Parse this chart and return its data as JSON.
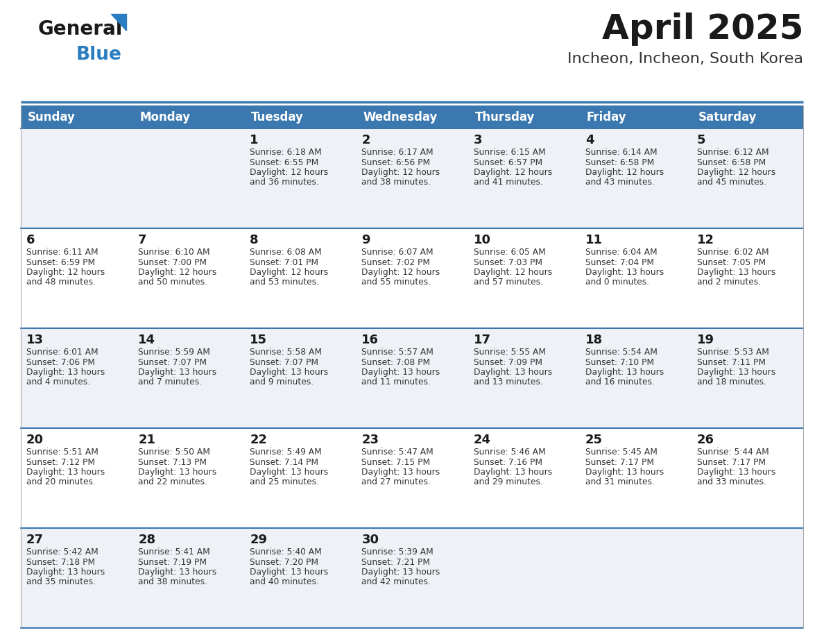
{
  "title": "April 2025",
  "subtitle": "Incheon, Incheon, South Korea",
  "days_of_week": [
    "Sunday",
    "Monday",
    "Tuesday",
    "Wednesday",
    "Thursday",
    "Friday",
    "Saturday"
  ],
  "header_bg": "#3b78b0",
  "header_text_color": "#ffffff",
  "cell_bg_odd": "#eef2f7",
  "cell_bg_even": "#ffffff",
  "divider_color": "#3b78b0",
  "title_color": "#1a1a1a",
  "subtitle_color": "#333333",
  "day_num_color": "#1a1a1a",
  "info_color": "#333333",
  "calendar": [
    [
      {
        "day": "",
        "info": ""
      },
      {
        "day": "",
        "info": ""
      },
      {
        "day": "1",
        "info": "Sunrise: 6:18 AM\nSunset: 6:55 PM\nDaylight: 12 hours\nand 36 minutes."
      },
      {
        "day": "2",
        "info": "Sunrise: 6:17 AM\nSunset: 6:56 PM\nDaylight: 12 hours\nand 38 minutes."
      },
      {
        "day": "3",
        "info": "Sunrise: 6:15 AM\nSunset: 6:57 PM\nDaylight: 12 hours\nand 41 minutes."
      },
      {
        "day": "4",
        "info": "Sunrise: 6:14 AM\nSunset: 6:58 PM\nDaylight: 12 hours\nand 43 minutes."
      },
      {
        "day": "5",
        "info": "Sunrise: 6:12 AM\nSunset: 6:58 PM\nDaylight: 12 hours\nand 45 minutes."
      }
    ],
    [
      {
        "day": "6",
        "info": "Sunrise: 6:11 AM\nSunset: 6:59 PM\nDaylight: 12 hours\nand 48 minutes."
      },
      {
        "day": "7",
        "info": "Sunrise: 6:10 AM\nSunset: 7:00 PM\nDaylight: 12 hours\nand 50 minutes."
      },
      {
        "day": "8",
        "info": "Sunrise: 6:08 AM\nSunset: 7:01 PM\nDaylight: 12 hours\nand 53 minutes."
      },
      {
        "day": "9",
        "info": "Sunrise: 6:07 AM\nSunset: 7:02 PM\nDaylight: 12 hours\nand 55 minutes."
      },
      {
        "day": "10",
        "info": "Sunrise: 6:05 AM\nSunset: 7:03 PM\nDaylight: 12 hours\nand 57 minutes."
      },
      {
        "day": "11",
        "info": "Sunrise: 6:04 AM\nSunset: 7:04 PM\nDaylight: 13 hours\nand 0 minutes."
      },
      {
        "day": "12",
        "info": "Sunrise: 6:02 AM\nSunset: 7:05 PM\nDaylight: 13 hours\nand 2 minutes."
      }
    ],
    [
      {
        "day": "13",
        "info": "Sunrise: 6:01 AM\nSunset: 7:06 PM\nDaylight: 13 hours\nand 4 minutes."
      },
      {
        "day": "14",
        "info": "Sunrise: 5:59 AM\nSunset: 7:07 PM\nDaylight: 13 hours\nand 7 minutes."
      },
      {
        "day": "15",
        "info": "Sunrise: 5:58 AM\nSunset: 7:07 PM\nDaylight: 13 hours\nand 9 minutes."
      },
      {
        "day": "16",
        "info": "Sunrise: 5:57 AM\nSunset: 7:08 PM\nDaylight: 13 hours\nand 11 minutes."
      },
      {
        "day": "17",
        "info": "Sunrise: 5:55 AM\nSunset: 7:09 PM\nDaylight: 13 hours\nand 13 minutes."
      },
      {
        "day": "18",
        "info": "Sunrise: 5:54 AM\nSunset: 7:10 PM\nDaylight: 13 hours\nand 16 minutes."
      },
      {
        "day": "19",
        "info": "Sunrise: 5:53 AM\nSunset: 7:11 PM\nDaylight: 13 hours\nand 18 minutes."
      }
    ],
    [
      {
        "day": "20",
        "info": "Sunrise: 5:51 AM\nSunset: 7:12 PM\nDaylight: 13 hours\nand 20 minutes."
      },
      {
        "day": "21",
        "info": "Sunrise: 5:50 AM\nSunset: 7:13 PM\nDaylight: 13 hours\nand 22 minutes."
      },
      {
        "day": "22",
        "info": "Sunrise: 5:49 AM\nSunset: 7:14 PM\nDaylight: 13 hours\nand 25 minutes."
      },
      {
        "day": "23",
        "info": "Sunrise: 5:47 AM\nSunset: 7:15 PM\nDaylight: 13 hours\nand 27 minutes."
      },
      {
        "day": "24",
        "info": "Sunrise: 5:46 AM\nSunset: 7:16 PM\nDaylight: 13 hours\nand 29 minutes."
      },
      {
        "day": "25",
        "info": "Sunrise: 5:45 AM\nSunset: 7:17 PM\nDaylight: 13 hours\nand 31 minutes."
      },
      {
        "day": "26",
        "info": "Sunrise: 5:44 AM\nSunset: 7:17 PM\nDaylight: 13 hours\nand 33 minutes."
      }
    ],
    [
      {
        "day": "27",
        "info": "Sunrise: 5:42 AM\nSunset: 7:18 PM\nDaylight: 13 hours\nand 35 minutes."
      },
      {
        "day": "28",
        "info": "Sunrise: 5:41 AM\nSunset: 7:19 PM\nDaylight: 13 hours\nand 38 minutes."
      },
      {
        "day": "29",
        "info": "Sunrise: 5:40 AM\nSunset: 7:20 PM\nDaylight: 13 hours\nand 40 minutes."
      },
      {
        "day": "30",
        "info": "Sunrise: 5:39 AM\nSunset: 7:21 PM\nDaylight: 13 hours\nand 42 minutes."
      },
      {
        "day": "",
        "info": ""
      },
      {
        "day": "",
        "info": ""
      },
      {
        "day": "",
        "info": ""
      }
    ]
  ],
  "logo_text1": "General",
  "logo_text2": "Blue",
  "logo_color1": "#1a1a1a",
  "logo_color2": "#2a7dc0",
  "logo_triangle_color": "#2a7dc0"
}
